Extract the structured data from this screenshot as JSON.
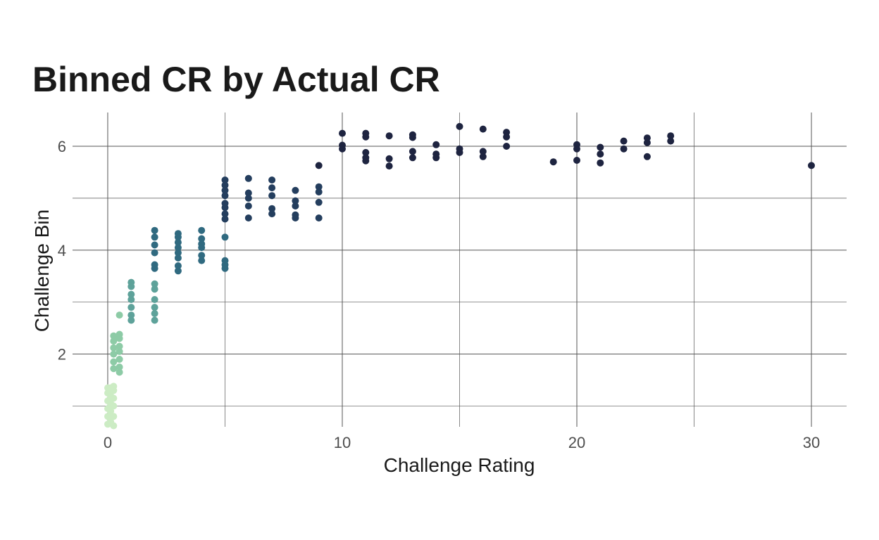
{
  "chart_data": {
    "type": "scatter",
    "title": "Binned CR by Actual CR",
    "xlabel": "Challenge Rating",
    "ylabel": "Challenge Bin",
    "xlim": [
      -1.5,
      31.5
    ],
    "ylim": [
      0.6,
      6.65
    ],
    "x_ticks": [
      0,
      10,
      20,
      30
    ],
    "x_tick_labels": [
      "0",
      "10",
      "20",
      "30"
    ],
    "x_minor_gridlines": [
      5,
      15,
      25
    ],
    "y_ticks": [
      2,
      4,
      6
    ],
    "y_tick_labels": [
      "2",
      "4",
      "6"
    ],
    "y_minor_gridlines": [
      1,
      3,
      5
    ],
    "grid": true,
    "legend": "none",
    "bin_colors": {
      "1": "#ccecc4",
      "2": "#8dcba6",
      "3": "#5ea29a",
      "4": "#306a80",
      "5": "#243e5e",
      "6": "#1e2440"
    },
    "points": [
      [
        0,
        0.65,
        1
      ],
      [
        0,
        0.8,
        1
      ],
      [
        0,
        0.95,
        1
      ],
      [
        0,
        1.1,
        1
      ],
      [
        0,
        1.25,
        1
      ],
      [
        0,
        1.35,
        1
      ],
      [
        0.125,
        0.7,
        1
      ],
      [
        0.125,
        0.9,
        1
      ],
      [
        0.125,
        1.05,
        1
      ],
      [
        0.125,
        1.2,
        1
      ],
      [
        0.125,
        1.35,
        1
      ],
      [
        0.25,
        0.62,
        1
      ],
      [
        0.25,
        0.8,
        1
      ],
      [
        0.25,
        1.0,
        1
      ],
      [
        0.25,
        1.15,
        1
      ],
      [
        0.25,
        1.3,
        1
      ],
      [
        0.25,
        1.38,
        1
      ],
      [
        0.25,
        1.72,
        2
      ],
      [
        0.25,
        1.85,
        2
      ],
      [
        0.25,
        2.0,
        2
      ],
      [
        0.25,
        2.12,
        2
      ],
      [
        0.25,
        2.25,
        2
      ],
      [
        0.25,
        2.35,
        2
      ],
      [
        0.5,
        1.65,
        2
      ],
      [
        0.5,
        1.75,
        2
      ],
      [
        0.5,
        1.9,
        2
      ],
      [
        0.5,
        2.05,
        2
      ],
      [
        0.5,
        2.15,
        2
      ],
      [
        0.5,
        2.3,
        2
      ],
      [
        0.5,
        2.38,
        2
      ],
      [
        0.5,
        2.75,
        2
      ],
      [
        1,
        2.65,
        3
      ],
      [
        1,
        2.75,
        3
      ],
      [
        1,
        2.9,
        3
      ],
      [
        1,
        3.05,
        3
      ],
      [
        1,
        3.15,
        3
      ],
      [
        1,
        3.3,
        3
      ],
      [
        1,
        3.38,
        3
      ],
      [
        2,
        2.65,
        3
      ],
      [
        2,
        2.78,
        3
      ],
      [
        2,
        2.9,
        3
      ],
      [
        2,
        3.05,
        3
      ],
      [
        2,
        3.25,
        3
      ],
      [
        2,
        3.35,
        3
      ],
      [
        2,
        3.65,
        4
      ],
      [
        2,
        3.72,
        4
      ],
      [
        2,
        3.95,
        4
      ],
      [
        2,
        4.1,
        4
      ],
      [
        2,
        4.25,
        4
      ],
      [
        2,
        4.38,
        4
      ],
      [
        3,
        3.6,
        4
      ],
      [
        3,
        3.7,
        4
      ],
      [
        3,
        3.85,
        4
      ],
      [
        3,
        3.95,
        4
      ],
      [
        3,
        4.05,
        4
      ],
      [
        3,
        4.15,
        4
      ],
      [
        3,
        4.25,
        4
      ],
      [
        3,
        4.32,
        4
      ],
      [
        4,
        3.8,
        4
      ],
      [
        4,
        3.9,
        4
      ],
      [
        4,
        4.05,
        4
      ],
      [
        4,
        4.12,
        4
      ],
      [
        4,
        4.22,
        4
      ],
      [
        4,
        4.38,
        4
      ],
      [
        5,
        3.65,
        4
      ],
      [
        5,
        3.72,
        4
      ],
      [
        5,
        3.8,
        4
      ],
      [
        5,
        4.25,
        4
      ],
      [
        5,
        4.6,
        5
      ],
      [
        5,
        4.7,
        5
      ],
      [
        5,
        4.82,
        5
      ],
      [
        5,
        4.9,
        5
      ],
      [
        5,
        5.05,
        5
      ],
      [
        5,
        5.15,
        5
      ],
      [
        5,
        5.25,
        5
      ],
      [
        5,
        5.35,
        5
      ],
      [
        6,
        4.62,
        5
      ],
      [
        6,
        4.85,
        5
      ],
      [
        6,
        5.0,
        5
      ],
      [
        6,
        5.1,
        5
      ],
      [
        6,
        5.38,
        5
      ],
      [
        7,
        4.7,
        5
      ],
      [
        7,
        4.8,
        5
      ],
      [
        7,
        5.05,
        5
      ],
      [
        7,
        5.2,
        5
      ],
      [
        7,
        5.35,
        5
      ],
      [
        8,
        4.62,
        5
      ],
      [
        8,
        4.68,
        5
      ],
      [
        8,
        4.85,
        5
      ],
      [
        8,
        4.95,
        5
      ],
      [
        8,
        5.15,
        5
      ],
      [
        9,
        4.62,
        5
      ],
      [
        9,
        4.92,
        5
      ],
      [
        9,
        5.12,
        5
      ],
      [
        9,
        5.22,
        5
      ],
      [
        9,
        5.63,
        6
      ],
      [
        10,
        5.95,
        6
      ],
      [
        10,
        6.02,
        6
      ],
      [
        10,
        6.25,
        6
      ],
      [
        11,
        5.72,
        6
      ],
      [
        11,
        5.78,
        6
      ],
      [
        11,
        5.88,
        6
      ],
      [
        11,
        6.18,
        6
      ],
      [
        11,
        6.25,
        6
      ],
      [
        12,
        5.62,
        6
      ],
      [
        12,
        5.76,
        6
      ],
      [
        12,
        6.2,
        6
      ],
      [
        13,
        5.78,
        6
      ],
      [
        13,
        5.9,
        6
      ],
      [
        13,
        6.17,
        6
      ],
      [
        13,
        6.22,
        6
      ],
      [
        14,
        5.78,
        6
      ],
      [
        14,
        5.85,
        6
      ],
      [
        14,
        6.03,
        6
      ],
      [
        15,
        5.88,
        6
      ],
      [
        15,
        5.95,
        6
      ],
      [
        15,
        6.38,
        6
      ],
      [
        16,
        5.8,
        6
      ],
      [
        16,
        5.9,
        6
      ],
      [
        16,
        6.33,
        6
      ],
      [
        17,
        6.0,
        6
      ],
      [
        17,
        6.18,
        6
      ],
      [
        17,
        6.27,
        6
      ],
      [
        19,
        5.7,
        6
      ],
      [
        20,
        5.73,
        6
      ],
      [
        20,
        5.95,
        6
      ],
      [
        20,
        6.03,
        6
      ],
      [
        21,
        5.68,
        6
      ],
      [
        21,
        5.85,
        6
      ],
      [
        21,
        5.98,
        6
      ],
      [
        22,
        5.95,
        6
      ],
      [
        22,
        6.1,
        6
      ],
      [
        23,
        5.8,
        6
      ],
      [
        23,
        6.07,
        6
      ],
      [
        23,
        6.16,
        6
      ],
      [
        24,
        6.1,
        6
      ],
      [
        24,
        6.2,
        6
      ],
      [
        30,
        5.63,
        6
      ]
    ]
  }
}
